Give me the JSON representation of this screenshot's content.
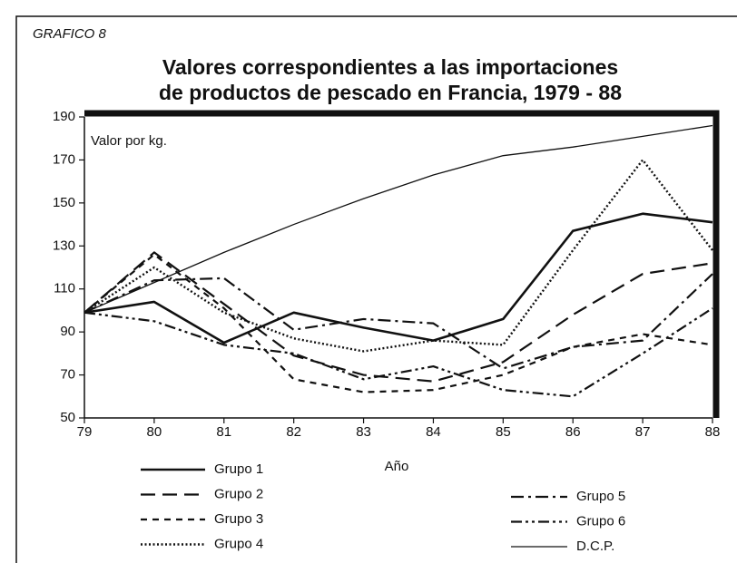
{
  "chart_data": {
    "type": "line",
    "subtitle": "GRAFICO 8",
    "title_lines": [
      "Valores correspondientes a las importaciones",
      "de productos de pescado en Francia, 1979 - 88"
    ],
    "annotation": "Valor por kg.",
    "x_label": "Año",
    "x": [
      79,
      80,
      81,
      82,
      83,
      84,
      85,
      86,
      87,
      88
    ],
    "xlim": [
      79,
      88
    ],
    "xticks": [
      79,
      80,
      81,
      82,
      83,
      84,
      85,
      86,
      87,
      88
    ],
    "ylim": [
      50,
      190
    ],
    "yticks": [
      50,
      70,
      90,
      110,
      130,
      150,
      170,
      190
    ],
    "series": [
      {
        "name": "Grupo 1",
        "color": "#111111",
        "style": "solid",
        "values": [
          99,
          104,
          85,
          99,
          92,
          86,
          96,
          137,
          145,
          141
        ]
      },
      {
        "name": "Grupo 2",
        "color": "#111111",
        "style": "dashed",
        "values": [
          99,
          127,
          103,
          79,
          70,
          67,
          76,
          98,
          117,
          122
        ]
      },
      {
        "name": "Grupo 3",
        "color": "#111111",
        "style": "short-dashed",
        "values": [
          99,
          126,
          101,
          68,
          62,
          63,
          70,
          83,
          89,
          84
        ]
      },
      {
        "name": "Grupo 4",
        "color": "#111111",
        "style": "dotted",
        "values": [
          99,
          120,
          99,
          87,
          81,
          86,
          84,
          128,
          170,
          128
        ]
      },
      {
        "name": "Grupo 5",
        "color": "#111111",
        "style": "dash-dot",
        "values": [
          99,
          114,
          115,
          91,
          96,
          94,
          73,
          83,
          86,
          117
        ]
      },
      {
        "name": "Grupo 6",
        "color": "#111111",
        "style": "dash-dot-dot",
        "values": [
          99,
          95,
          84,
          80,
          68,
          74,
          63,
          60,
          80,
          101
        ]
      },
      {
        "name": "D.C.P.",
        "color": "#111111",
        "style": "thin",
        "values": [
          99,
          113,
          127,
          140,
          152,
          163,
          172,
          176,
          181,
          186
        ]
      }
    ]
  }
}
